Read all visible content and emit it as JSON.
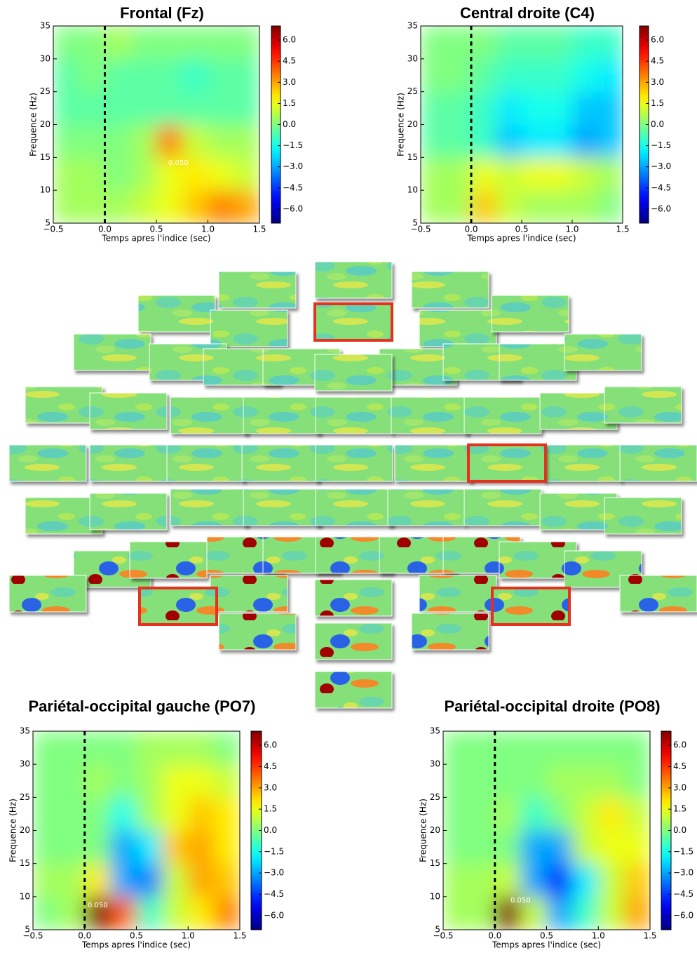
{
  "chart_data": [
    {
      "type": "heatmap",
      "title": "Frontal (Fz)",
      "xlabel": "Temps apres l'indice (sec)",
      "ylabel": "Frequence (Hz)",
      "colormap": "jet",
      "annotation": "0.050",
      "xbins": [
        -0.5,
        -0.25,
        0,
        0.25,
        0.5,
        0.75,
        1,
        1.25,
        1.5
      ],
      "ybins": [
        5,
        10,
        15,
        20,
        25,
        30,
        35
      ],
      "values": [
        [
          0.5,
          0.5,
          0.5,
          1,
          1.5,
          2.5,
          3.5,
          3
        ],
        [
          0.5,
          0.5,
          0,
          0.5,
          1.5,
          2,
          1.5,
          1
        ],
        [
          0,
          0,
          0,
          0.5,
          3.5,
          1,
          0.5,
          0.5
        ],
        [
          -0.5,
          -0.5,
          -0.5,
          -0.5,
          -0.5,
          -0.5,
          -0.5,
          -0.5
        ],
        [
          -0.5,
          0,
          -0.5,
          -0.5,
          -0.5,
          -1,
          -0.5,
          -0.5
        ],
        [
          0,
          0,
          0.5,
          0,
          0,
          0,
          0,
          0
        ]
      ],
      "vline": 0,
      "xlim": [
        -0.5,
        1.5
      ],
      "ylim": [
        5,
        35
      ],
      "clim": [
        -7,
        7
      ],
      "xticks": [
        {
          "value": -0.5,
          "label": "−0.5"
        },
        {
          "value": 0,
          "label": "0.0"
        },
        {
          "value": 0.5,
          "label": "0.5"
        },
        {
          "value": 1,
          "label": "1.0"
        },
        {
          "value": 1.5,
          "label": "1.5"
        }
      ],
      "yticks": [
        5,
        10,
        15,
        20,
        25,
        30,
        35
      ],
      "cticks": [
        {
          "value": 6,
          "label": "6.0"
        },
        {
          "value": 4.5,
          "label": "4.5"
        },
        {
          "value": 3,
          "label": "3.0"
        },
        {
          "value": 1.5,
          "label": "1.5"
        },
        {
          "value": 0,
          "label": "0.0"
        },
        {
          "value": -1.5,
          "label": "−1.5"
        },
        {
          "value": -3,
          "label": "−3.0"
        },
        {
          "value": -4.5,
          "label": "−4.5"
        },
        {
          "value": -6,
          "label": "−6.0"
        }
      ]
    },
    {
      "type": "heatmap",
      "title": "Central droite (C4)",
      "xlabel": "Temps apres l'indice (sec)",
      "ylabel": "Frequence (Hz)",
      "colormap": "jet",
      "xbins": [
        -0.5,
        -0.25,
        0,
        0.25,
        0.5,
        0.75,
        1,
        1.25,
        1.5
      ],
      "ybins": [
        5,
        10,
        15,
        20,
        25,
        30,
        35
      ],
      "values": [
        [
          0.5,
          0.5,
          2.5,
          1,
          0.5,
          0.5,
          0.5,
          0
        ],
        [
          0.5,
          0.5,
          1.5,
          1,
          1.5,
          1.5,
          1,
          0.5
        ],
        [
          -0.5,
          -0.5,
          -1,
          -2.5,
          -2,
          -2,
          -3,
          -2.5
        ],
        [
          -0.5,
          -0.5,
          -1,
          -2,
          -1.5,
          -1.5,
          -2.5,
          -2.5
        ],
        [
          0,
          0,
          -0.5,
          -1,
          -1,
          -1,
          -1.5,
          -2
        ],
        [
          0,
          0,
          0,
          -0.5,
          -0.5,
          -0.5,
          -1,
          -1
        ]
      ],
      "vline": 0,
      "xlim": [
        -0.5,
        1.5
      ],
      "ylim": [
        5,
        35
      ],
      "clim": [
        -7,
        7
      ],
      "xticks": [
        {
          "value": -0.5,
          "label": "−0.5"
        },
        {
          "value": 0,
          "label": "0.0"
        },
        {
          "value": 0.5,
          "label": "0.5"
        },
        {
          "value": 1,
          "label": "1.0"
        },
        {
          "value": 1.5,
          "label": "1.5"
        }
      ],
      "yticks": [
        5,
        10,
        15,
        20,
        25,
        30,
        35
      ],
      "cticks": [
        {
          "value": 6,
          "label": "6.0"
        },
        {
          "value": 4.5,
          "label": "4.5"
        },
        {
          "value": 3,
          "label": "3.0"
        },
        {
          "value": 1.5,
          "label": "1.5"
        },
        {
          "value": 0,
          "label": "0.0"
        },
        {
          "value": -1.5,
          "label": "−1.5"
        },
        {
          "value": -3,
          "label": "−3.0"
        },
        {
          "value": -4.5,
          "label": "−4.5"
        },
        {
          "value": -6,
          "label": "−6.0"
        }
      ]
    },
    {
      "type": "heatmap",
      "title": "Pariétal-occipital gauche (PO7)",
      "xlabel": "Temps apres l'indice (sec)",
      "ylabel": "Frequence (Hz)",
      "colormap": "jet",
      "annotation": "0.050",
      "xbins": [
        -0.5,
        -0.25,
        0,
        0.25,
        0.5,
        0.75,
        1,
        1.25,
        1.5
      ],
      "ybins": [
        5,
        10,
        15,
        20,
        25,
        30,
        35
      ],
      "values": [
        [
          0,
          0.5,
          7,
          4,
          -1,
          1,
          2,
          3.5
        ],
        [
          0.5,
          0.5,
          2,
          -3,
          -3.5,
          1,
          3,
          2.5
        ],
        [
          0,
          0,
          0,
          -3,
          -2,
          2.5,
          3,
          2
        ],
        [
          0,
          0,
          0,
          -1.5,
          0.5,
          1.5,
          2.5,
          2
        ],
        [
          0,
          0,
          0.5,
          0,
          0.5,
          1.5,
          1.5,
          1
        ],
        [
          0,
          0,
          0,
          0,
          0.5,
          0.5,
          0.5,
          0
        ]
      ],
      "vline": 0,
      "xlim": [
        -0.5,
        1.5
      ],
      "ylim": [
        5,
        35
      ],
      "clim": [
        -7,
        7
      ],
      "xticks": [
        {
          "value": -0.5,
          "label": "−0.5"
        },
        {
          "value": 0,
          "label": "0.0"
        },
        {
          "value": 0.5,
          "label": "0.5"
        },
        {
          "value": 1,
          "label": "1.0"
        },
        {
          "value": 1.5,
          "label": "1.5"
        }
      ],
      "yticks": [
        5,
        10,
        15,
        20,
        25,
        30,
        35
      ],
      "cticks": [
        {
          "value": 6,
          "label": "6.0"
        },
        {
          "value": 4.5,
          "label": "4.5"
        },
        {
          "value": 3,
          "label": "3.0"
        },
        {
          "value": 1.5,
          "label": "1.5"
        },
        {
          "value": 0,
          "label": "0.0"
        },
        {
          "value": -1.5,
          "label": "−1.5"
        },
        {
          "value": -3,
          "label": "−3.0"
        },
        {
          "value": -4.5,
          "label": "−4.5"
        },
        {
          "value": -6,
          "label": "−6.0"
        }
      ]
    },
    {
      "type": "heatmap",
      "title": "Pariétal-occipital droite (PO8)",
      "xlabel": "Temps apres l'indice (sec)",
      "ylabel": "Frequence (Hz)",
      "colormap": "jet",
      "annotation": "0.050",
      "xbins": [
        -0.5,
        -0.25,
        0,
        0.25,
        0.5,
        0.75,
        1,
        1.25,
        1.5
      ],
      "ybins": [
        5,
        10,
        15,
        20,
        25,
        30,
        35
      ],
      "values": [
        [
          0.5,
          0.5,
          7,
          1,
          -3,
          -1,
          1,
          3
        ],
        [
          0.5,
          0.5,
          1,
          -3,
          -5,
          -2,
          1,
          2.5
        ],
        [
          0,
          0,
          0,
          -3,
          -3,
          1,
          1.5,
          1.5
        ],
        [
          0,
          0,
          0.5,
          -1,
          0,
          1,
          2,
          1
        ],
        [
          0,
          0,
          0,
          0,
          0.5,
          0.5,
          0.5,
          0
        ],
        [
          0,
          0,
          0,
          0,
          0,
          0,
          0,
          0
        ]
      ],
      "vline": 0,
      "xlim": [
        -0.5,
        1.5
      ],
      "ylim": [
        5,
        35
      ],
      "clim": [
        -7,
        7
      ],
      "xticks": [
        {
          "value": -0.5,
          "label": "−0.5"
        },
        {
          "value": 0,
          "label": "0.0"
        },
        {
          "value": 0.5,
          "label": "0.5"
        },
        {
          "value": 1,
          "label": "1.0"
        },
        {
          "value": 1.5,
          "label": "1.5"
        }
      ],
      "yticks": [
        5,
        10,
        15,
        20,
        25,
        30,
        35
      ],
      "cticks": [
        {
          "value": 6,
          "label": "6.0"
        },
        {
          "value": 4.5,
          "label": "4.5"
        },
        {
          "value": 3,
          "label": "3.0"
        },
        {
          "value": 1.5,
          "label": "1.5"
        },
        {
          "value": 0,
          "label": "0.0"
        },
        {
          "value": -1.5,
          "label": "−1.5"
        },
        {
          "value": -3,
          "label": "−3.0"
        },
        {
          "value": -4.5,
          "label": "−4.5"
        },
        {
          "value": -6,
          "label": "−6.0"
        }
      ]
    }
  ]
}
